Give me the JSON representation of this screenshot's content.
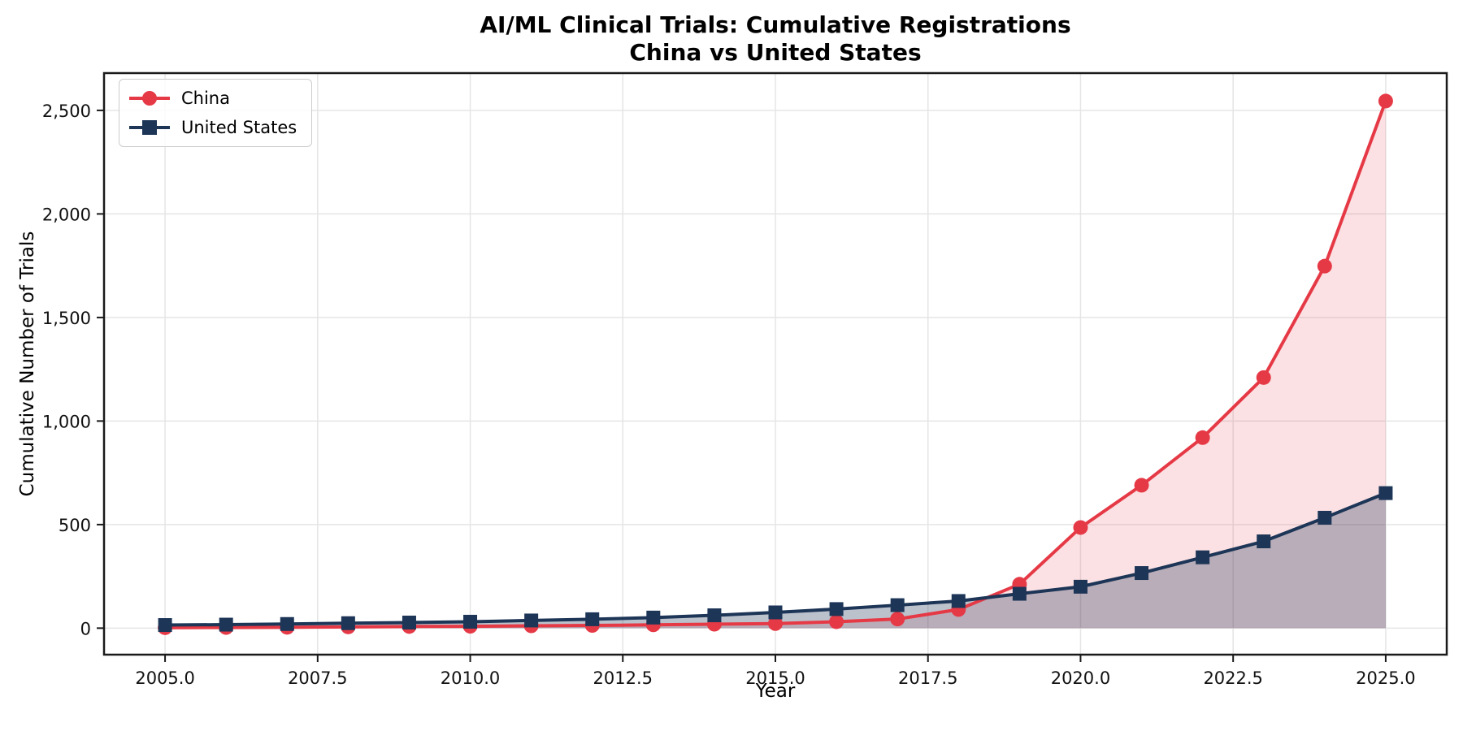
{
  "title": {
    "line1": "AI/ML Clinical Trials: Cumulative Registrations",
    "line2": "China vs United States"
  },
  "chart_data": {
    "type": "line",
    "title": "AI/ML Clinical Trials: Cumulative Registrations — China vs United States",
    "xlabel": "Year",
    "ylabel": "Cumulative Number of Trials",
    "x": [
      2005,
      2006,
      2007,
      2008,
      2009,
      2010,
      2011,
      2012,
      2013,
      2014,
      2015,
      2016,
      2017,
      2018,
      2019,
      2020,
      2021,
      2022,
      2023,
      2024,
      2025
    ],
    "series": [
      {
        "name": "China",
        "color": "#e63946",
        "marker": "circle",
        "fill_alpha": 0.15,
        "values": [
          2,
          3,
          4,
          6,
          8,
          9,
          11,
          13,
          16,
          19,
          22,
          31,
          44,
          90,
          212,
          486,
          690,
          920,
          1210,
          1748,
          2545
        ]
      },
      {
        "name": "United States",
        "color": "#1d3557",
        "marker": "square",
        "fill_alpha": 0.3,
        "values": [
          15,
          17,
          20,
          24,
          27,
          31,
          37,
          43,
          51,
          62,
          76,
          92,
          111,
          131,
          166,
          200,
          266,
          342,
          419,
          533,
          652
        ]
      }
    ],
    "xlim": [
      2004,
      2026
    ],
    "ylim": [
      -128,
      2680
    ],
    "xticks": [
      2005,
      2007.5,
      2010,
      2012.5,
      2015,
      2017.5,
      2020,
      2022.5,
      2025
    ],
    "xtick_labels": [
      "2005.0",
      "2007.5",
      "2010.0",
      "2012.5",
      "2015.0",
      "2017.5",
      "2020.0",
      "2022.5",
      "2025.0"
    ],
    "yticks": [
      0,
      500,
      1000,
      1500,
      2000,
      2500
    ],
    "ytick_labels": [
      "0",
      "500",
      "1,000",
      "1,500",
      "2,000",
      "2,500"
    ],
    "grid": true,
    "legend_position": "upper-left",
    "fill_baseline": 0
  },
  "colors": {
    "grid": "#e5e5e5",
    "spine": "#1a1a1a",
    "tick_text": "#111111",
    "background": "#ffffff"
  }
}
